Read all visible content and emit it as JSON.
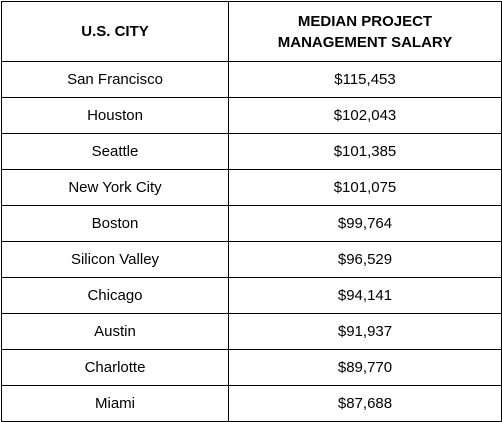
{
  "table": {
    "headers": {
      "city": "U.S. CITY",
      "salary": "MEDIAN PROJECT MANAGEMENT SALARY"
    },
    "rows": [
      {
        "city": "San Francisco",
        "salary": "$115,453"
      },
      {
        "city": "Houston",
        "salary": "$102,043"
      },
      {
        "city": "Seattle",
        "salary": "$101,385"
      },
      {
        "city": "New York City",
        "salary": "$101,075"
      },
      {
        "city": "Boston",
        "salary": "$99,764"
      },
      {
        "city": "Silicon Valley",
        "salary": "$96,529"
      },
      {
        "city": "Chicago",
        "salary": "$94,141"
      },
      {
        "city": "Austin",
        "salary": "$91,937"
      },
      {
        "city": "Charlotte",
        "salary": "$89,770"
      },
      {
        "city": "Miami",
        "salary": "$87,688"
      }
    ]
  }
}
